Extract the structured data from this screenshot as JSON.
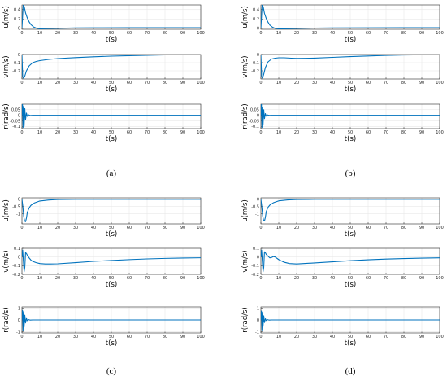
{
  "series_color": "#0072BD",
  "chart_data": [
    {
      "panel": "a",
      "caption": "(a)",
      "type": "line",
      "xlabel": "t(s)",
      "ylabel": "u(m/s)",
      "xlim": [
        0,
        100
      ],
      "ylim": [
        -0.02,
        0.5
      ],
      "xticks": [
        "0",
        "10",
        "20",
        "30",
        "40",
        "50",
        "60",
        "70",
        "80",
        "90",
        "100"
      ],
      "yticks": [
        "0",
        "0.2",
        "0.4"
      ],
      "ytick_values": [
        0,
        0.2,
        0.4
      ],
      "grid": true,
      "x": [
        0,
        0.7,
        1.3,
        2,
        3,
        4,
        5,
        6.5,
        8,
        10,
        15,
        20,
        30,
        40,
        60,
        80,
        100
      ],
      "y": [
        0,
        0.5,
        0.46,
        0.33,
        0.22,
        0.14,
        0.08,
        0.03,
        0.005,
        -0.01,
        -0.005,
        0,
        0.01,
        0.012,
        0.013,
        0.013,
        0.013
      ]
    },
    {
      "panel": "a",
      "type": "line",
      "xlabel": "t(s)",
      "ylabel": "v(m/s)",
      "xlim": [
        0,
        100
      ],
      "ylim": [
        -0.3,
        0
      ],
      "xticks": [
        "0",
        "10",
        "20",
        "30",
        "40",
        "50",
        "60",
        "70",
        "80",
        "90",
        "100"
      ],
      "yticks": [
        "-0.2",
        "-0.1",
        "0"
      ],
      "ytick_values": [
        -0.2,
        -0.1,
        0
      ],
      "grid": true,
      "x": [
        0,
        0.4,
        0.8,
        1.5,
        2.5,
        4,
        6,
        8,
        10,
        15,
        20,
        30,
        40,
        50,
        60,
        70,
        80,
        90,
        100
      ],
      "y": [
        0,
        -0.27,
        -0.29,
        -0.27,
        -0.2,
        -0.14,
        -0.1,
        -0.085,
        -0.075,
        -0.06,
        -0.05,
        -0.038,
        -0.028,
        -0.02,
        -0.014,
        -0.009,
        -0.005,
        -0.003,
        -0.002
      ]
    },
    {
      "panel": "a",
      "type": "line",
      "xlabel": "t(s)",
      "ylabel": "r(rad/s)",
      "xlim": [
        0,
        100
      ],
      "ylim": [
        -0.12,
        0.1
      ],
      "xticks": [
        "0",
        "10",
        "20",
        "30",
        "40",
        "50",
        "60",
        "70",
        "80",
        "90",
        "100"
      ],
      "yticks": [
        "-0.1",
        "-0.05",
        "0",
        "0.05"
      ],
      "ytick_values": [
        -0.1,
        -0.05,
        0,
        0.05
      ],
      "grid": true,
      "x": [
        0,
        0.3,
        0.6,
        0.9,
        1.2,
        1.6,
        2,
        2.5,
        3,
        3.6,
        4.5,
        6,
        8,
        100
      ],
      "y": [
        0,
        0.1,
        -0.11,
        0.08,
        -0.1,
        0.06,
        -0.04,
        0.02,
        -0.01,
        0.005,
        -0.002,
        0,
        0,
        0
      ]
    },
    {
      "panel": "b",
      "caption": "(b)",
      "type": "line",
      "xlabel": "t(s)",
      "ylabel": "u(m/s)",
      "xlim": [
        0,
        100
      ],
      "ylim": [
        -0.02,
        0.5
      ],
      "xticks": [
        "0",
        "10",
        "20",
        "30",
        "40",
        "50",
        "60",
        "70",
        "80",
        "90",
        "100"
      ],
      "yticks": [
        "0",
        "0.2",
        "0.4"
      ],
      "ytick_values": [
        0,
        0.2,
        0.4
      ],
      "grid": true,
      "x": [
        0,
        0.7,
        1.3,
        2,
        3,
        4,
        5,
        6.5,
        8,
        10,
        15,
        20,
        30,
        40,
        60,
        80,
        100
      ],
      "y": [
        0,
        0.5,
        0.46,
        0.32,
        0.21,
        0.13,
        0.07,
        0.025,
        0,
        -0.012,
        -0.008,
        -0.002,
        0.006,
        0.01,
        0.012,
        0.013,
        0.013
      ]
    },
    {
      "panel": "b",
      "type": "line",
      "xlabel": "t(s)",
      "ylabel": "v(m/s)",
      "xlim": [
        0,
        100
      ],
      "ylim": [
        -0.3,
        0
      ],
      "xticks": [
        "0",
        "10",
        "20",
        "30",
        "40",
        "50",
        "60",
        "70",
        "80",
        "90",
        "100"
      ],
      "yticks": [
        "-0.2",
        "-0.1",
        "0"
      ],
      "ytick_values": [
        -0.2,
        -0.1,
        0
      ],
      "grid": true,
      "x": [
        0,
        0.4,
        0.8,
        1.5,
        2.5,
        4,
        6,
        8,
        10,
        13,
        17,
        20,
        25,
        30,
        40,
        50,
        60,
        70,
        80,
        90,
        100
      ],
      "y": [
        0,
        -0.26,
        -0.29,
        -0.25,
        -0.16,
        -0.09,
        -0.055,
        -0.045,
        -0.04,
        -0.04,
        -0.045,
        -0.048,
        -0.047,
        -0.044,
        -0.035,
        -0.026,
        -0.018,
        -0.011,
        -0.006,
        -0.003,
        -0.002
      ]
    },
    {
      "panel": "b",
      "type": "line",
      "xlabel": "t(s)",
      "ylabel": "r(rad/s)",
      "xlim": [
        0,
        100
      ],
      "ylim": [
        -0.12,
        0.1
      ],
      "xticks": [
        "0",
        "10",
        "20",
        "30",
        "40",
        "50",
        "60",
        "70",
        "80",
        "90",
        "100"
      ],
      "yticks": [
        "-0.1",
        "-0.05",
        "0",
        "0.05"
      ],
      "ytick_values": [
        -0.1,
        -0.05,
        0,
        0.05
      ],
      "grid": true,
      "x": [
        0,
        0.3,
        0.6,
        0.9,
        1.2,
        1.6,
        2,
        2.5,
        3,
        3.6,
        4.5,
        6,
        8,
        100
      ],
      "y": [
        0,
        0.1,
        -0.11,
        0.07,
        -0.09,
        0.05,
        -0.03,
        0.015,
        -0.008,
        0.004,
        -0.001,
        0,
        0,
        0
      ]
    },
    {
      "panel": "c",
      "caption": "(c)",
      "type": "line",
      "xlabel": "t(s)",
      "ylabel": "u(m/s)",
      "xlim": [
        0,
        100
      ],
      "ylim": [
        -1.7,
        0.1
      ],
      "xticks": [
        "0",
        "10",
        "20",
        "30",
        "40",
        "50",
        "60",
        "70",
        "80",
        "90",
        "100"
      ],
      "yticks": [
        "-1",
        "-0.5",
        "0"
      ],
      "ytick_values": [
        -1,
        -0.5,
        0
      ],
      "grid": true,
      "x": [
        0,
        0.5,
        1,
        1.5,
        2,
        2.5,
        3,
        4,
        5,
        7,
        10,
        15,
        20,
        30,
        40,
        60,
        100
      ],
      "y": [
        0,
        -0.5,
        -1.2,
        -1.5,
        -1.55,
        -1.3,
        -0.9,
        -0.6,
        -0.42,
        -0.25,
        -0.12,
        -0.05,
        -0.02,
        -0.005,
        0,
        0,
        0
      ]
    },
    {
      "panel": "c",
      "type": "line",
      "xlabel": "t(s)",
      "ylabel": "v(m/s)",
      "xlim": [
        0,
        100
      ],
      "ylim": [
        -0.2,
        0.1
      ],
      "xticks": [
        "0",
        "10",
        "20",
        "30",
        "40",
        "50",
        "60",
        "70",
        "80",
        "90",
        "100"
      ],
      "yticks": [
        "-0.2",
        "-0.1",
        "0",
        "0.1"
      ],
      "ytick_values": [
        -0.2,
        -0.1,
        0,
        0.1
      ],
      "grid": true,
      "x": [
        0,
        0.4,
        0.8,
        1.2,
        1.6,
        2,
        2.5,
        3,
        4,
        5,
        6,
        8,
        10,
        13,
        16,
        20,
        30,
        40,
        50,
        60,
        70,
        80,
        90,
        100
      ],
      "y": [
        0,
        0.08,
        -0.05,
        -0.17,
        -0.12,
        0.05,
        0.04,
        0.02,
        -0.01,
        -0.035,
        -0.05,
        -0.065,
        -0.075,
        -0.08,
        -0.08,
        -0.078,
        -0.065,
        -0.05,
        -0.04,
        -0.03,
        -0.022,
        -0.016,
        -0.012,
        -0.009
      ]
    },
    {
      "panel": "c",
      "type": "line",
      "xlabel": "t(s)",
      "ylabel": "r(rad/s)",
      "xlim": [
        0,
        100
      ],
      "ylim": [
        -1.1,
        1.1
      ],
      "xticks": [
        "0",
        "10",
        "20",
        "30",
        "40",
        "50",
        "60",
        "70",
        "80",
        "90",
        "100"
      ],
      "yticks": [
        "-1",
        "0",
        "1"
      ],
      "ytick_values": [
        -1,
        0,
        1
      ],
      "grid": true,
      "x": [
        0,
        0.3,
        0.6,
        0.9,
        1.2,
        1.6,
        2,
        2.5,
        3,
        3.6,
        4.5,
        6,
        8,
        100
      ],
      "y": [
        0,
        0.8,
        -0.9,
        0.7,
        -0.6,
        0.4,
        -0.25,
        0.12,
        -0.06,
        0.03,
        -0.01,
        0,
        0,
        0
      ]
    },
    {
      "panel": "d",
      "caption": "(d)",
      "type": "line",
      "xlabel": "t(s)",
      "ylabel": "u(m/s)",
      "xlim": [
        0,
        100
      ],
      "ylim": [
        -1.7,
        0.1
      ],
      "xticks": [
        "0",
        "10",
        "20",
        "30",
        "40",
        "50",
        "60",
        "70",
        "80",
        "90",
        "100"
      ],
      "yticks": [
        "-1",
        "-0.5",
        "0"
      ],
      "ytick_values": [
        -1,
        -0.5,
        0
      ],
      "grid": true,
      "x": [
        0,
        0.5,
        1,
        1.5,
        2,
        2.5,
        3,
        4,
        5,
        7,
        10,
        15,
        20,
        30,
        40,
        60,
        100
      ],
      "y": [
        0,
        -0.5,
        -1.15,
        -1.45,
        -1.5,
        -1.25,
        -0.85,
        -0.55,
        -0.4,
        -0.24,
        -0.11,
        -0.045,
        -0.018,
        -0.004,
        0,
        0,
        0
      ]
    },
    {
      "panel": "d",
      "type": "line",
      "xlabel": "t(s)",
      "ylabel": "v(m/s)",
      "xlim": [
        0,
        100
      ],
      "ylim": [
        -0.2,
        0.1
      ],
      "xticks": [
        "0",
        "10",
        "20",
        "30",
        "40",
        "50",
        "60",
        "70",
        "80",
        "90",
        "100"
      ],
      "yticks": [
        "-0.2",
        "-0.1",
        "0",
        "0.1"
      ],
      "ytick_values": [
        -0.2,
        -0.1,
        0,
        0.1
      ],
      "grid": true,
      "x": [
        0,
        0.4,
        0.8,
        1.2,
        1.6,
        2,
        2.5,
        3,
        4,
        5,
        6,
        7,
        8,
        10,
        13,
        16,
        20,
        30,
        40,
        50,
        60,
        70,
        80,
        90,
        100
      ],
      "y": [
        0,
        0.08,
        -0.05,
        -0.17,
        -0.12,
        0.06,
        0.05,
        0.03,
        0.01,
        -0.01,
        -0.005,
        0.005,
        0,
        -0.03,
        -0.06,
        -0.075,
        -0.08,
        -0.068,
        -0.055,
        -0.042,
        -0.032,
        -0.024,
        -0.018,
        -0.013,
        -0.01
      ]
    },
    {
      "panel": "d",
      "type": "line",
      "xlabel": "t(s)",
      "ylabel": "r(rad/s)",
      "xlim": [
        0,
        100
      ],
      "ylim": [
        -1.1,
        1.1
      ],
      "xticks": [
        "0",
        "10",
        "20",
        "30",
        "40",
        "50",
        "60",
        "70",
        "80",
        "90",
        "100"
      ],
      "yticks": [
        "-1",
        "0",
        "1"
      ],
      "ytick_values": [
        -1,
        0,
        1
      ],
      "grid": true,
      "x": [
        0,
        0.3,
        0.6,
        0.9,
        1.2,
        1.6,
        2,
        2.5,
        3,
        3.6,
        4.5,
        6,
        8,
        100
      ],
      "y": [
        0,
        0.75,
        -0.85,
        0.65,
        -0.55,
        0.35,
        -0.22,
        0.1,
        -0.05,
        0.025,
        -0.01,
        0,
        0,
        0
      ]
    }
  ]
}
